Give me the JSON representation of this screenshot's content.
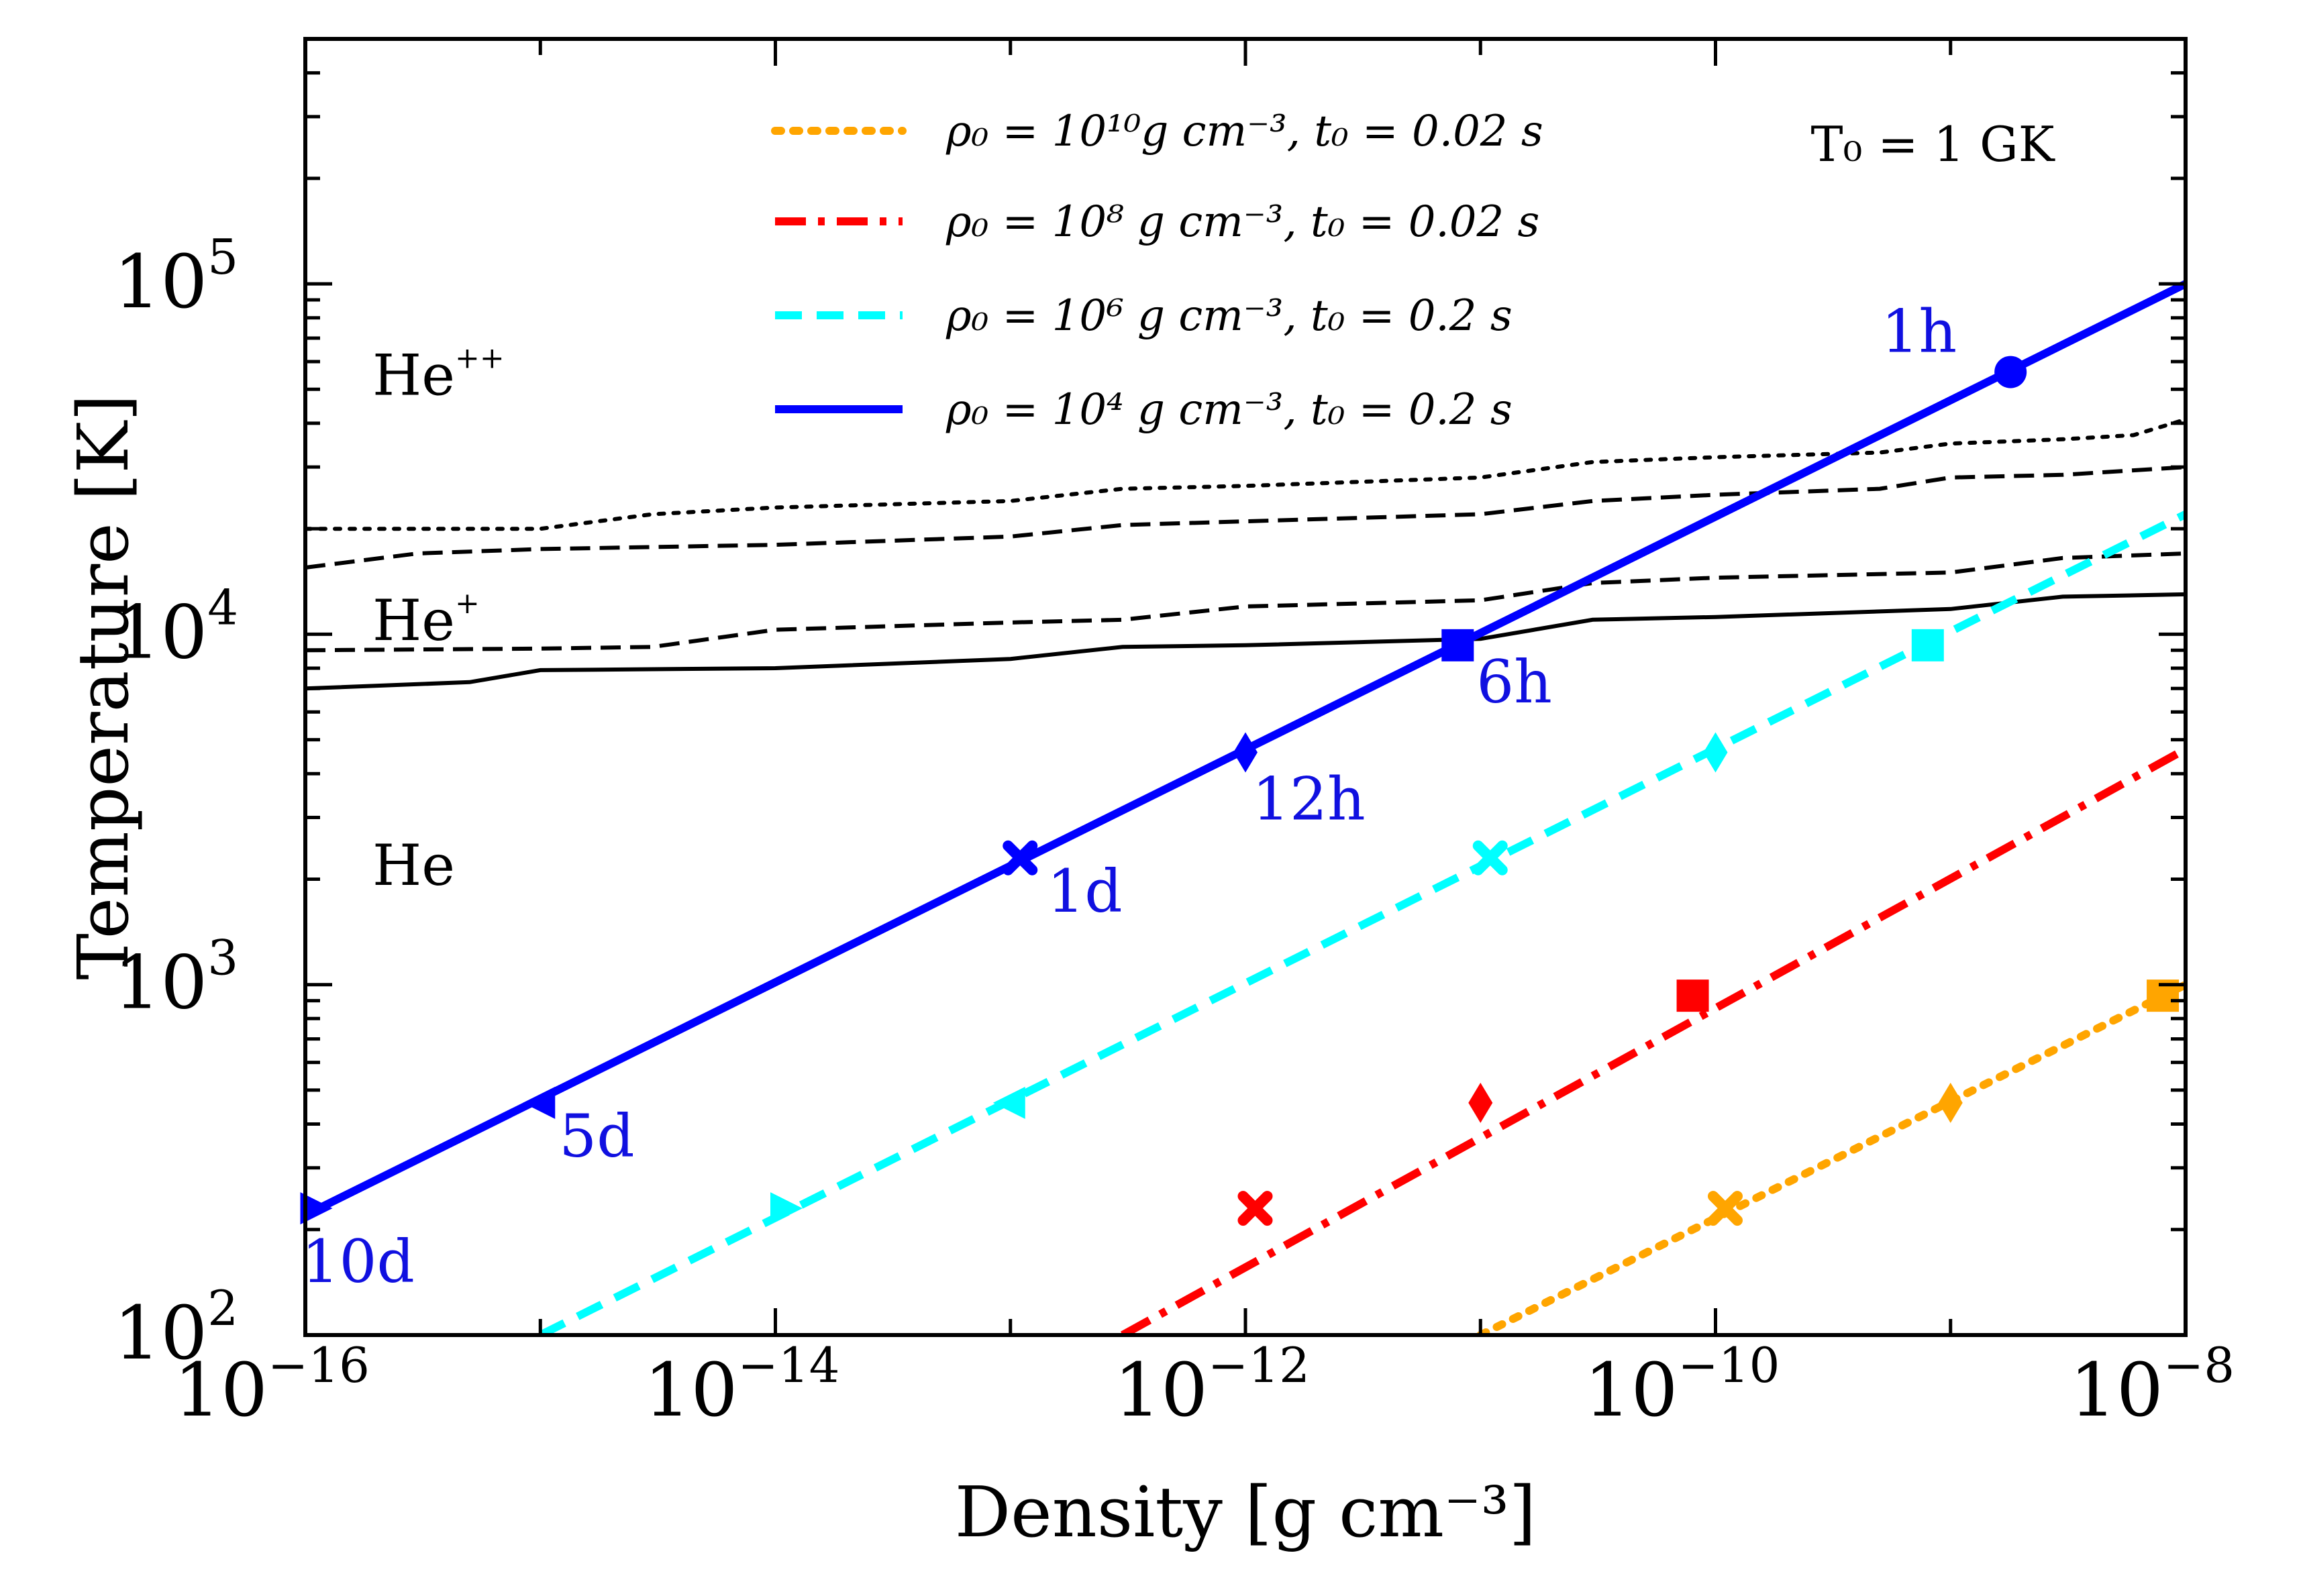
{
  "chart_data": {
    "type": "line",
    "xlabel": "Density [g cm⁻³]",
    "ylabel": "Temperature [K]",
    "xscale": "log",
    "yscale": "log",
    "xlim": [
      1e-16,
      1e-08
    ],
    "ylim": [
      100,
      500000
    ],
    "x_ticks": [
      {
        "base": "10",
        "exp": "−16",
        "value": 1e-16
      },
      {
        "base": "10",
        "exp": "−14",
        "value": 1e-14
      },
      {
        "base": "10",
        "exp": "−12",
        "value": 1e-12
      },
      {
        "base": "10",
        "exp": "−10",
        "value": 1e-10
      },
      {
        "base": "10",
        "exp": "−8",
        "value": 1e-08
      }
    ],
    "y_ticks": [
      {
        "base": "10",
        "exp": "2",
        "value": 100
      },
      {
        "base": "10",
        "exp": "3",
        "value": 1000
      },
      {
        "base": "10",
        "exp": "4",
        "value": 10000
      },
      {
        "base": "10",
        "exp": "5",
        "value": 100000
      }
    ],
    "annotation": "T₀ = 1 GK",
    "region_labels": [
      {
        "base": "He",
        "sup": "++",
        "x": 1.6e-16,
        "y": 55000
      },
      {
        "base": "He",
        "sup": "+",
        "x": 1.6e-16,
        "y": 11000
      },
      {
        "base": "He",
        "sup": "",
        "x": 1.6e-16,
        "y": 2200
      }
    ],
    "series": [
      {
        "name": "ρ₀ = 10¹⁰g cm⁻³, t₀ = 0.02 s",
        "legend_text": "ρ₀ = 10¹⁰g cm⁻³, t₀ = 0.02 s",
        "color": "#ffa500",
        "dash": "dotted",
        "x": [
          1e-11,
          1e-08
        ],
        "y": [
          100,
          1000
        ],
        "markers": [
          {
            "shape": "square",
            "x": 8e-09,
            "y": 930
          },
          {
            "shape": "diamond",
            "x": 1e-09,
            "y": 460
          },
          {
            "shape": "x",
            "x": 1.1e-10,
            "y": 230
          }
        ]
      },
      {
        "name": "ρ₀ = 10⁸ g cm⁻³, t₀ = 0.02 s",
        "legend_text": "ρ₀ = 10⁸ g cm⁻³, t₀ = 0.02 s",
        "color": "#ff0000",
        "dash": "dashdot",
        "x": [
          3e-13,
          1e-08
        ],
        "y": [
          100,
          4700
        ],
        "markers": [
          {
            "shape": "square",
            "x": 8e-11,
            "y": 930
          },
          {
            "shape": "diamond",
            "x": 1e-11,
            "y": 460
          },
          {
            "shape": "x",
            "x": 1.1e-12,
            "y": 230
          }
        ]
      },
      {
        "name": "ρ₀ = 10⁶ g cm⁻³, t₀ = 0.2 s",
        "legend_text": "ρ₀ = 10⁶ g cm⁻³, t₀ = 0.2 s",
        "color": "#00ffff",
        "dash": "dashed",
        "x": [
          1e-15,
          1e-08
        ],
        "y": [
          100,
          22000
        ],
        "markers": [
          {
            "shape": "square",
            "x": 8e-10,
            "y": 9300
          },
          {
            "shape": "diamond",
            "x": 1e-10,
            "y": 4600
          },
          {
            "shape": "x",
            "x": 1.1e-11,
            "y": 2300
          },
          {
            "shape": "triangle-left",
            "x": 1e-13,
            "y": 460
          },
          {
            "shape": "triangle-right",
            "x": 1.1e-14,
            "y": 230
          }
        ]
      },
      {
        "name": "ρ₀ = 10⁴ g cm⁻³, t₀ = 0.2 s",
        "legend_text": "ρ₀ = 10⁴ g cm⁻³, t₀ = 0.2 s",
        "color": "#0000ff",
        "dash": "solid",
        "x": [
          1e-16,
          1e-08
        ],
        "y": [
          220,
          100000
        ],
        "markers": [
          {
            "shape": "circle",
            "x": 1.8e-09,
            "y": 56000,
            "label": "1h"
          },
          {
            "shape": "square",
            "x": 8e-12,
            "y": 9300,
            "label": "6h"
          },
          {
            "shape": "diamond",
            "x": 1e-12,
            "y": 4600,
            "label": "12h"
          },
          {
            "shape": "x",
            "x": 1.1e-13,
            "y": 2300,
            "label": "1d"
          },
          {
            "shape": "triangle-left",
            "x": 1e-15,
            "y": 460,
            "label": "5d"
          },
          {
            "shape": "triangle-right",
            "x": 1.1e-16,
            "y": 230,
            "label": "10d"
          }
        ]
      }
    ],
    "boundary_curves": [
      {
        "name": "He++ boundary (dotted)",
        "style": "dotted",
        "x": [
          1e-16,
          1e-15,
          3e-15,
          1e-14,
          1e-13,
          3e-13,
          1e-12,
          1e-11,
          3e-11,
          1e-10,
          5e-10,
          1e-09,
          3e-09,
          6e-09,
          1e-08
        ],
        "y": [
          20000,
          20000,
          22000,
          23000,
          24000,
          26000,
          26500,
          28000,
          31000,
          32000,
          33000,
          35000,
          36000,
          37000,
          41000
        ]
      },
      {
        "name": "He++ boundary (dashed)",
        "style": "dashed",
        "x": [
          1e-16,
          3e-16,
          1e-15,
          1e-14,
          1e-13,
          3e-13,
          1e-12,
          1e-11,
          3e-11,
          1e-10,
          5e-10,
          1e-09,
          3e-09,
          1e-08
        ],
        "y": [
          15500,
          17000,
          17500,
          18000,
          19000,
          20500,
          21000,
          22000,
          24000,
          25000,
          26000,
          28000,
          28500,
          30000
        ]
      },
      {
        "name": "He+ boundary (dashed)",
        "style": "dashed",
        "x": [
          1e-16,
          1e-15,
          3e-15,
          1e-14,
          1e-13,
          3e-13,
          1e-12,
          1e-11,
          3e-11,
          1e-10,
          1e-09,
          3e-09,
          1e-08
        ],
        "y": [
          9000,
          9100,
          9200,
          10300,
          10800,
          11000,
          12000,
          12500,
          14000,
          14500,
          15000,
          16500,
          17000
        ]
      },
      {
        "name": "He+ boundary (solid)",
        "style": "solid",
        "x": [
          1e-16,
          5e-16,
          1e-15,
          1e-14,
          1e-13,
          3e-13,
          1e-12,
          1e-11,
          3e-11,
          1e-10,
          1e-09,
          3e-09,
          1e-08
        ],
        "y": [
          7000,
          7300,
          7900,
          8000,
          8500,
          9200,
          9300,
          9700,
          11000,
          11200,
          11800,
          12800,
          13000
        ]
      }
    ]
  }
}
